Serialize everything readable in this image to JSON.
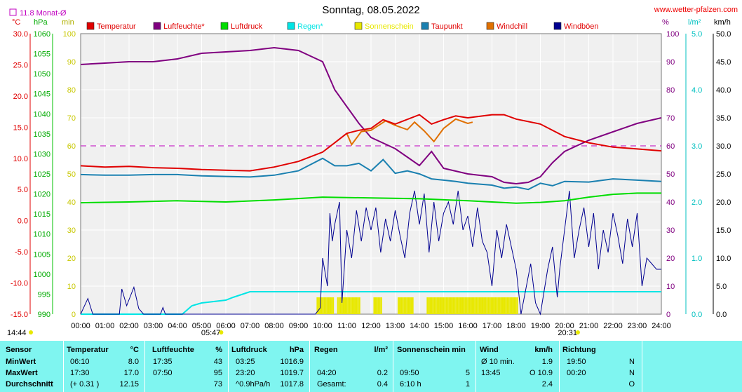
{
  "title": "Sonntag, 08.05.2022",
  "site": "www.wetter-pfalzen.com",
  "monthly_avg": "11.8 Monat-Ø",
  "axis_units": {
    "temp": "°C",
    "pressure": "hPa",
    "minutes": "min",
    "percent": "%",
    "rain": "l/m²",
    "wind": "km/h"
  },
  "legend": [
    {
      "label": "Temperatur",
      "color": "#e00000"
    },
    {
      "label": "Luftfeuchte*",
      "color": "#800080"
    },
    {
      "label": "Luftdruck",
      "color": "#00dd00"
    },
    {
      "label": "Regen*",
      "color": "#00e5e5"
    },
    {
      "label": "Sonnenschein",
      "color": "#e8e800"
    },
    {
      "label": "Taupunkt",
      "color": "#1a80b0"
    },
    {
      "label": "Windchill",
      "color": "#e07000"
    },
    {
      "label": "Windböen",
      "color": "#000090"
    }
  ],
  "sunrise": "05:47",
  "sunset": "20:31",
  "daylength": "14:44",
  "chart_data": {
    "type": "line",
    "title": "Sonntag, 08.05.2022",
    "x_ticks": [
      "00:00",
      "01:00",
      "02:00",
      "03:00",
      "04:00",
      "05:00",
      "06:00",
      "07:00",
      "08:00",
      "09:00",
      "10:00",
      "11:00",
      "12:00",
      "13:00",
      "14:00",
      "15:00",
      "16:00",
      "17:00",
      "18:00",
      "19:00",
      "20:00",
      "21:00",
      "22:00",
      "23:00",
      "24:00"
    ],
    "y_axes": {
      "temp": {
        "range": [
          -15,
          30
        ],
        "ticks": [
          "30.0",
          "25.0",
          "20.0",
          "15.0",
          "10.0",
          "5.0",
          "0.0",
          "-5.0",
          "-10.0",
          "-15.0"
        ]
      },
      "pressure": {
        "range": [
          990,
          1060
        ],
        "ticks": [
          "1060",
          "1055",
          "1050",
          "1045",
          "1040",
          "1035",
          "1030",
          "1025",
          "1020",
          "1015",
          "1010",
          "1005",
          "1000",
          "995",
          "990"
        ]
      },
      "minutes": {
        "range": [
          0,
          100
        ],
        "ticks": [
          "100",
          "90",
          "80",
          "70",
          "60",
          "50",
          "40",
          "30",
          "20",
          "10",
          "0"
        ]
      },
      "percent": {
        "range": [
          0,
          100
        ],
        "ticks": [
          "100",
          "90",
          "80",
          "70",
          "60",
          "50",
          "40",
          "30",
          "20",
          "10",
          "0"
        ]
      },
      "rain": {
        "range": [
          0,
          5
        ],
        "ticks": [
          "5.0",
          "4.0",
          "3.0",
          "2.0",
          "1.0",
          "0.0"
        ]
      },
      "wind": {
        "range": [
          0,
          50
        ],
        "ticks": [
          "50.0",
          "45.0",
          "40.0",
          "35.0",
          "30.0",
          "25.0",
          "20.0",
          "15.0",
          "10.0",
          "5.0",
          "0.0"
        ]
      }
    },
    "reference_line": {
      "axis": "percent",
      "value": 60,
      "color": "#c000c0"
    },
    "series": [
      {
        "name": "Temperatur",
        "axis": "temp",
        "color": "#e00000",
        "points": [
          [
            0,
            8.8
          ],
          [
            1,
            8.6
          ],
          [
            2,
            8.7
          ],
          [
            3,
            8.5
          ],
          [
            4,
            8.4
          ],
          [
            5,
            8.2
          ],
          [
            6,
            8.1
          ],
          [
            7,
            8.0
          ],
          [
            8,
            8.6
          ],
          [
            9,
            9.5
          ],
          [
            10,
            11
          ],
          [
            10.5,
            12.5
          ],
          [
            11,
            14.0
          ],
          [
            11.5,
            14.5
          ],
          [
            12,
            14.8
          ],
          [
            12.5,
            16.2
          ],
          [
            13,
            15.5
          ],
          [
            14,
            17.0
          ],
          [
            14.5,
            15.5
          ],
          [
            15,
            16.2
          ],
          [
            15.5,
            16.8
          ],
          [
            16,
            16.5
          ],
          [
            17,
            17.0
          ],
          [
            17.5,
            17.0
          ],
          [
            18,
            16.3
          ],
          [
            19,
            15.5
          ],
          [
            20,
            13.5
          ],
          [
            21,
            12.5
          ],
          [
            22,
            11.8
          ],
          [
            23,
            11.5
          ],
          [
            24,
            11.2
          ]
        ]
      },
      {
        "name": "Windchill",
        "axis": "temp",
        "color": "#e07000",
        "points": [
          [
            11,
            14.0
          ],
          [
            11.2,
            12.2
          ],
          [
            11.6,
            14.3
          ],
          [
            12,
            14.5
          ],
          [
            12.6,
            16.0
          ],
          [
            13,
            15.3
          ],
          [
            13.5,
            14.6
          ],
          [
            13.8,
            15.8
          ],
          [
            14.2,
            14.4
          ],
          [
            14.6,
            12.7
          ],
          [
            15,
            14.8
          ],
          [
            15.5,
            16.3
          ],
          [
            16,
            15.6
          ],
          [
            16.2,
            15.8
          ]
        ]
      },
      {
        "name": "Luftfeuchte*",
        "axis": "percent",
        "color": "#800080",
        "points": [
          [
            0,
            89
          ],
          [
            1,
            89.5
          ],
          [
            2,
            90
          ],
          [
            3,
            90
          ],
          [
            4,
            91
          ],
          [
            5,
            93
          ],
          [
            6,
            93.5
          ],
          [
            7,
            94
          ],
          [
            8,
            95
          ],
          [
            9,
            94
          ],
          [
            10,
            90
          ],
          [
            10.5,
            80
          ],
          [
            11,
            74
          ],
          [
            11.5,
            68
          ],
          [
            12,
            63
          ],
          [
            12.5,
            61
          ],
          [
            13,
            59
          ],
          [
            13.5,
            56
          ],
          [
            14,
            53
          ],
          [
            14.5,
            58
          ],
          [
            15,
            52
          ],
          [
            16,
            50
          ],
          [
            17,
            49
          ],
          [
            17.5,
            47
          ],
          [
            18,
            46.5
          ],
          [
            18.5,
            47
          ],
          [
            19,
            49
          ],
          [
            19.5,
            54
          ],
          [
            20,
            58
          ],
          [
            21,
            62
          ],
          [
            22,
            65
          ],
          [
            23,
            68
          ],
          [
            24,
            70
          ]
        ]
      },
      {
        "name": "Taupunkt",
        "axis": "temp",
        "color": "#1a80b0",
        "points": [
          [
            0,
            7.4
          ],
          [
            1,
            7.3
          ],
          [
            2,
            7.3
          ],
          [
            3,
            7.4
          ],
          [
            4,
            7.4
          ],
          [
            5,
            7.2
          ],
          [
            6,
            7.1
          ],
          [
            7,
            7.0
          ],
          [
            8,
            7.3
          ],
          [
            9,
            8.0
          ],
          [
            10,
            10.0
          ],
          [
            10.5,
            8.8
          ],
          [
            11,
            8.8
          ],
          [
            11.5,
            9.2
          ],
          [
            12,
            8.0
          ],
          [
            12.5,
            9.8
          ],
          [
            13,
            7.6
          ],
          [
            13.5,
            8.0
          ],
          [
            14,
            7.5
          ],
          [
            14.5,
            6.7
          ],
          [
            15,
            6.5
          ],
          [
            15.5,
            6.3
          ],
          [
            16,
            6.0
          ],
          [
            17,
            5.7
          ],
          [
            17.5,
            5.2
          ],
          [
            18,
            5.4
          ],
          [
            18.5,
            5.0
          ],
          [
            19,
            6.0
          ],
          [
            19.5,
            5.6
          ],
          [
            20,
            6.3
          ],
          [
            21,
            6.2
          ],
          [
            22,
            6.7
          ],
          [
            23,
            6.5
          ],
          [
            24,
            6.3
          ]
        ]
      },
      {
        "name": "Luftdruck",
        "axis": "pressure",
        "color": "#00dd00",
        "points": [
          [
            0,
            1017.8
          ],
          [
            2,
            1018.0
          ],
          [
            4,
            1018.3
          ],
          [
            6,
            1018.0
          ],
          [
            8,
            1018.5
          ],
          [
            10,
            1019.2
          ],
          [
            12,
            1019.0
          ],
          [
            14,
            1018.8
          ],
          [
            16,
            1018.3
          ],
          [
            18,
            1017.7
          ],
          [
            19,
            1017.9
          ],
          [
            20,
            1018.3
          ],
          [
            21,
            1019.2
          ],
          [
            22,
            1019.9
          ],
          [
            23,
            1020.2
          ],
          [
            24,
            1020.2
          ]
        ]
      },
      {
        "name": "Regen*",
        "axis": "rain",
        "color": "#00e5e5",
        "points": [
          [
            0,
            0
          ],
          [
            4.2,
            0
          ],
          [
            4.6,
            0.15
          ],
          [
            5,
            0.2
          ],
          [
            6,
            0.25
          ],
          [
            6.3,
            0.3
          ],
          [
            7,
            0.4
          ],
          [
            24,
            0.4
          ]
        ]
      },
      {
        "name": "Windböen",
        "axis": "wind",
        "color": "#000090",
        "points": [
          [
            0,
            0
          ],
          [
            0.3,
            2.8
          ],
          [
            0.5,
            0
          ],
          [
            1.6,
            0
          ],
          [
            1.7,
            4.5
          ],
          [
            1.9,
            1.5
          ],
          [
            2.2,
            4.8
          ],
          [
            2.4,
            1.0
          ],
          [
            2.6,
            0
          ],
          [
            3.3,
            0
          ],
          [
            3.4,
            1.2
          ],
          [
            3.5,
            0
          ],
          [
            9.7,
            0
          ],
          [
            9.9,
            1.1
          ],
          [
            10.0,
            10.0
          ],
          [
            10.2,
            5.0
          ],
          [
            10.3,
            18.0
          ],
          [
            10.4,
            13.0
          ],
          [
            10.5,
            16.0
          ],
          [
            10.7,
            20.0
          ],
          [
            10.8,
            2.0
          ],
          [
            11.0,
            15.0
          ],
          [
            11.2,
            10.0
          ],
          [
            11.4,
            18.5
          ],
          [
            11.6,
            13.0
          ],
          [
            11.8,
            19.0
          ],
          [
            12.0,
            15.0
          ],
          [
            12.2,
            19.0
          ],
          [
            12.4,
            11.0
          ],
          [
            12.6,
            17.0
          ],
          [
            12.8,
            13.0
          ],
          [
            13.0,
            18.5
          ],
          [
            13.2,
            14.0
          ],
          [
            13.4,
            10.0
          ],
          [
            13.6,
            18.0
          ],
          [
            13.8,
            22.0
          ],
          [
            14.0,
            16.0
          ],
          [
            14.2,
            21.5
          ],
          [
            14.4,
            11.0
          ],
          [
            14.6,
            20.0
          ],
          [
            14.8,
            13.0
          ],
          [
            15.0,
            18.0
          ],
          [
            15.2,
            20.0
          ],
          [
            15.4,
            16.0
          ],
          [
            15.6,
            22.0
          ],
          [
            15.8,
            15.0
          ],
          [
            16.0,
            17.5
          ],
          [
            16.2,
            12.0
          ],
          [
            16.4,
            19.0
          ],
          [
            16.6,
            13.0
          ],
          [
            16.8,
            11.0
          ],
          [
            17.0,
            5.0
          ],
          [
            17.2,
            15.0
          ],
          [
            17.4,
            10.0
          ],
          [
            17.6,
            16.0
          ],
          [
            17.8,
            12.0
          ],
          [
            18.0,
            8.0
          ],
          [
            18.2,
            0
          ],
          [
            18.6,
            9.0
          ],
          [
            18.8,
            2.0
          ],
          [
            19.0,
            0
          ],
          [
            19.3,
            8.0
          ],
          [
            19.5,
            12.0
          ],
          [
            19.7,
            3.0
          ],
          [
            19.8,
            8.0
          ],
          [
            20.0,
            15.0
          ],
          [
            20.2,
            22.0
          ],
          [
            20.4,
            10.0
          ],
          [
            20.6,
            15.0
          ],
          [
            20.8,
            19.0
          ],
          [
            21.0,
            12.0
          ],
          [
            21.2,
            18.0
          ],
          [
            21.4,
            8.0
          ],
          [
            21.6,
            15.0
          ],
          [
            21.8,
            11.0
          ],
          [
            22.0,
            18.0
          ],
          [
            22.2,
            14.0
          ],
          [
            22.4,
            9.0
          ],
          [
            22.6,
            17.0
          ],
          [
            22.8,
            12.0
          ],
          [
            23.0,
            18.0
          ],
          [
            23.2,
            5.0
          ],
          [
            23.4,
            10.0
          ],
          [
            23.6,
            9.0
          ],
          [
            23.8,
            8.0
          ],
          [
            24.0,
            8.0
          ]
        ]
      }
    ],
    "sunshine_intervals": [
      [
        9.75,
        10.45
      ],
      [
        10.6,
        11.55
      ],
      [
        12.1,
        12.45
      ],
      [
        13.1,
        13.75
      ],
      [
        14.3,
        18.05
      ]
    ]
  },
  "footer": {
    "headers": [
      "Sensor",
      "Temperatur",
      "°C",
      "Luftfeuchte",
      "%",
      "Luftdruck",
      "hPa",
      "Regen",
      "l/m²",
      "Sonnenschein min",
      "Wind",
      "km/h",
      "Richtung"
    ],
    "rows": [
      {
        "label": "MinWert",
        "temp_time": "06:10",
        "temp_val": "8.0",
        "hum_time": "17:35",
        "hum_val": "43",
        "press_time": "03:25",
        "press_val": "1016.9",
        "rain_time": "",
        "rain_val": "",
        "sun_time": "",
        "sun_val": "",
        "wind_label": "Ø 10 min.",
        "wind_val": "1.9",
        "dir_time": "19:50",
        "dir_val": "N"
      },
      {
        "label": "MaxWert",
        "temp_time": "17:30",
        "temp_val": "17.0",
        "hum_time": "07:50",
        "hum_val": "95",
        "press_time": "23:20",
        "press_val": "1019.7",
        "rain_time": "04:20",
        "rain_val": "0.2",
        "sun_time": "09:50",
        "sun_val": "5",
        "wind_label": "13:45",
        "wind_val": "O 10.9",
        "dir_time": "00:20",
        "dir_val": "N"
      },
      {
        "label": "Durchschnitt",
        "temp_time": "(+ 0.31 )",
        "temp_val": "12.15",
        "hum_time": "",
        "hum_val": "73",
        "press_time": "^0.9hPa/h",
        "press_val": "1017.8",
        "rain_time": "Gesamt:",
        "rain_val": "0.4",
        "sun_time": "6:10 h",
        "sun_val": "1",
        "wind_label": "",
        "wind_val": "2.4",
        "dir_time": "",
        "dir_val": "O"
      }
    ]
  }
}
